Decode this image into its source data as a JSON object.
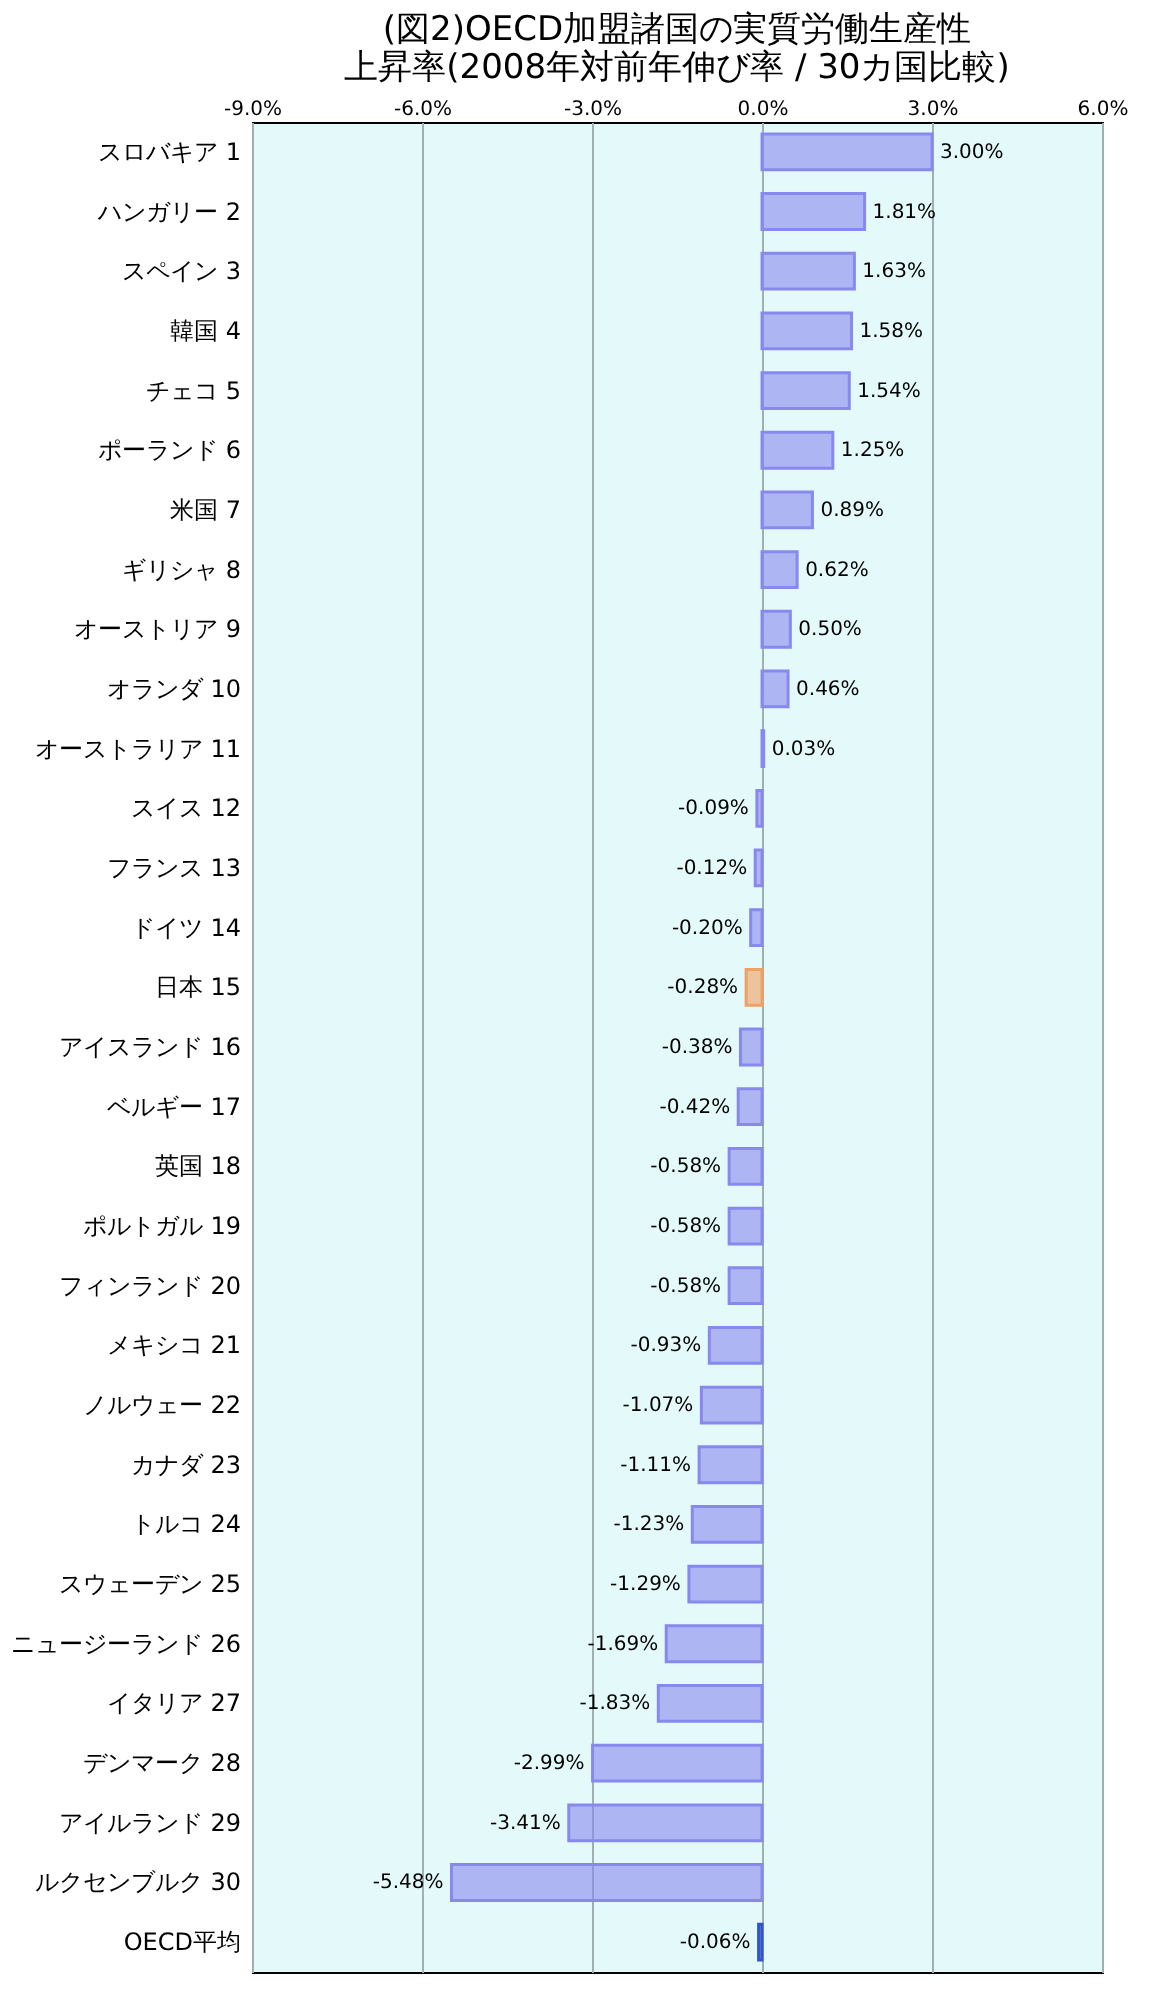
{
  "chart_data": {
    "type": "bar",
    "orientation": "horizontal",
    "title": [
      "(図2)OECD加盟諸国の実質労働生産性",
      "上昇率(2008年対前年伸び率 / 30カ国比較)"
    ],
    "categories": [
      "スロバキア 1",
      "ハンガリー 2",
      "スペイン 3",
      "韓国 4",
      "チェコ 5",
      "ポーランド 6",
      "米国 7",
      "ギリシャ 8",
      "オーストリア 9",
      "オランダ 10",
      "オーストラリア 11",
      "スイス 12",
      "フランス 13",
      "ドイツ 14",
      "日本 15",
      "アイスランド 16",
      "ベルギー 17",
      "英国 18",
      "ポルトガル 19",
      "フィンランド 20",
      "メキシコ 21",
      "ノルウェー 22",
      "カナダ 23",
      "トルコ 24",
      "スウェーデン 25",
      "ニュージーランド 26",
      "イタリア 27",
      "デンマーク 28",
      "アイルランド 29",
      "ルクセンブルク 30",
      "OECD平均"
    ],
    "values": [
      3.0,
      1.81,
      1.63,
      1.58,
      1.54,
      1.25,
      0.89,
      0.62,
      0.5,
      0.46,
      0.03,
      -0.09,
      -0.12,
      -0.2,
      -0.28,
      -0.38,
      -0.42,
      -0.58,
      -0.58,
      -0.58,
      -0.93,
      -1.07,
      -1.11,
      -1.23,
      -1.29,
      -1.69,
      -1.83,
      -2.99,
      -3.41,
      -5.48,
      -0.06
    ],
    "value_labels": [
      "3.00%",
      "1.81%",
      "1.63%",
      "1.58%",
      "1.54%",
      "1.25%",
      "0.89%",
      "0.62%",
      "0.50%",
      "0.46%",
      "0.03%",
      "-0.09%",
      "-0.12%",
      "-0.20%",
      "-0.28%",
      "-0.38%",
      "-0.42%",
      "-0.58%",
      "-0.58%",
      "-0.58%",
      "-0.93%",
      "-1.07%",
      "-1.11%",
      "-1.23%",
      "-1.29%",
      "-1.69%",
      "-1.83%",
      "-2.99%",
      "-3.41%",
      "-5.48%",
      "-0.06%"
    ],
    "colors": [
      "#8888ee",
      "#8888ee",
      "#8888ee",
      "#8888ee",
      "#8888ee",
      "#8888ee",
      "#8888ee",
      "#8888ee",
      "#8888ee",
      "#8888ee",
      "#8888ee",
      "#8888ee",
      "#8888ee",
      "#8888ee",
      "#f0a060",
      "#8888ee",
      "#8888ee",
      "#8888ee",
      "#8888ee",
      "#8888ee",
      "#8888ee",
      "#8888ee",
      "#8888ee",
      "#8888ee",
      "#8888ee",
      "#8888ee",
      "#8888ee",
      "#8888ee",
      "#8888ee",
      "#8888ee",
      "#3355cc"
    ],
    "xlim": [
      -9,
      6
    ],
    "xticks": [
      {
        "value": -9,
        "label": "-9.0%"
      },
      {
        "value": -6,
        "label": "-6.0%"
      },
      {
        "value": -3,
        "label": "-3.0%"
      },
      {
        "value": 0,
        "label": "0.0%"
      },
      {
        "value": 3,
        "label": "3.0%"
      },
      {
        "value": 6,
        "label": "6.0%"
      }
    ],
    "grid": "x"
  }
}
